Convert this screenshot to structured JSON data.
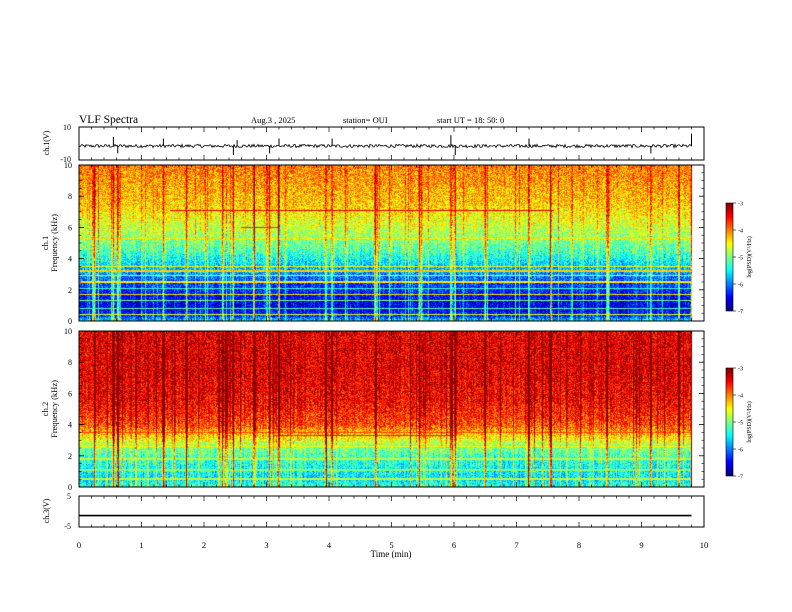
{
  "header": {
    "title": "VLF Spectra",
    "date": "Aug.3 , 2025",
    "station": "station= OUI",
    "start": "start UT = 18: 50: 0"
  },
  "chart_data": [
    {
      "type": "line",
      "panel": "ch1-waveform",
      "ylabel": "ch.1(V)",
      "ylim": [
        -10,
        10
      ],
      "yticks": [
        10,
        -10
      ],
      "baseline": -1.5,
      "noise_amplitude": 2,
      "spikes": [
        {
          "t": 0.55,
          "v": 4
        },
        {
          "t": 0.62,
          "v": -6
        },
        {
          "t": 1.35,
          "v": 3
        },
        {
          "t": 2.47,
          "v": -7
        },
        {
          "t": 2.53,
          "v": 2
        },
        {
          "t": 3.05,
          "v": -6
        },
        {
          "t": 3.2,
          "v": 3
        },
        {
          "t": 4.05,
          "v": 3
        },
        {
          "t": 5.95,
          "v": 5
        },
        {
          "t": 6.02,
          "v": -7
        },
        {
          "t": 7.2,
          "v": 3
        },
        {
          "t": 9.15,
          "v": -6
        },
        {
          "t": 9.8,
          "v": 6
        }
      ]
    },
    {
      "type": "heatmap",
      "panel": "ch1-spectrogram",
      "ylabel_line1": "ch.1",
      "ylabel_line2": "Frequency (kHz)",
      "ylim": [
        0,
        10
      ],
      "yticks": [
        0,
        2,
        4,
        6,
        8,
        10
      ],
      "colorbar": {
        "label": "log(PSD)(V²/Hz)",
        "range": [
          -7,
          -3
        ],
        "ticks": [
          -3,
          -4,
          -5,
          -6,
          -7
        ]
      },
      "profile": [
        {
          "f": 0,
          "v": -5.6
        },
        {
          "f": 0.3,
          "v": -6.3
        },
        {
          "f": 0.8,
          "v": -6.6
        },
        {
          "f": 1.5,
          "v": -6.5
        },
        {
          "f": 2.5,
          "v": -6.2
        },
        {
          "f": 3.5,
          "v": -5.7
        },
        {
          "f": 4.5,
          "v": -5.2
        },
        {
          "f": 6,
          "v": -4.7
        },
        {
          "f": 7.5,
          "v": -4.3
        },
        {
          "f": 9,
          "v": -4.1
        },
        {
          "f": 10,
          "v": -4.0
        }
      ],
      "lines": [
        {
          "f": 7.1,
          "t0": 1.45,
          "t1": 7.6,
          "v": -3.4
        },
        {
          "f": 6.0,
          "t0": 2.6,
          "t1": 3.2,
          "v": -3.6
        },
        {
          "f": 5.3,
          "t0": 0.0,
          "t1": 9.8,
          "v": -4.4
        },
        {
          "f": 3.5,
          "t0": 0.0,
          "t1": 9.8,
          "v": -4.5
        },
        {
          "f": 3.2,
          "t0": 0.0,
          "t1": 9.8,
          "v": -4.3
        },
        {
          "f": 2.9,
          "t0": 0.0,
          "t1": 9.8,
          "v": -4.7
        },
        {
          "f": 2.5,
          "t0": 0.0,
          "t1": 9.8,
          "v": -4.4
        },
        {
          "f": 2.1,
          "t0": 0.0,
          "t1": 9.8,
          "v": -5.3
        },
        {
          "f": 1.7,
          "t0": 0.0,
          "t1": 9.8,
          "v": -4.4
        },
        {
          "f": 1.3,
          "t0": 0.0,
          "t1": 9.8,
          "v": -5.0
        },
        {
          "f": 0.8,
          "t0": 0.0,
          "t1": 9.8,
          "v": -5.2
        },
        {
          "f": 0.4,
          "t0": 0.0,
          "t1": 9.8,
          "v": -4.6
        }
      ],
      "sferics": [
        0.25,
        0.55,
        0.62,
        1.35,
        1.72,
        2.3,
        2.47,
        2.8,
        3.05,
        3.2,
        3.95,
        4.05,
        4.75,
        5.45,
        5.95,
        6.02,
        6.5,
        7.2,
        7.55,
        8.45,
        9.15,
        9.6,
        9.8
      ]
    },
    {
      "type": "heatmap",
      "panel": "ch2-spectrogram",
      "ylabel_line1": "ch.2",
      "ylabel_line2": "Frequency (kHz)",
      "ylim": [
        0,
        10
      ],
      "yticks": [
        0,
        2,
        4,
        6,
        8,
        10
      ],
      "colorbar": {
        "label": "log(PSD)(V²/Hz)",
        "range": [
          -7,
          -3
        ],
        "ticks": [
          -3,
          -4,
          -5,
          -6,
          -7
        ]
      },
      "profile": [
        {
          "f": 0,
          "v": -5.3
        },
        {
          "f": 0.5,
          "v": -5.6
        },
        {
          "f": 1.5,
          "v": -5.4
        },
        {
          "f": 2.5,
          "v": -5.0
        },
        {
          "f": 3.2,
          "v": -4.4
        },
        {
          "f": 4.0,
          "v": -3.8
        },
        {
          "f": 5.5,
          "v": -3.5
        },
        {
          "f": 7.5,
          "v": -3.4
        },
        {
          "f": 10,
          "v": -3.4
        }
      ],
      "lines": [
        {
          "f": 3.5,
          "t0": 0.0,
          "t1": 9.8,
          "v": -3.8
        },
        {
          "f": 3.3,
          "t0": 3.1,
          "t1": 6.0,
          "v": -3.6
        },
        {
          "f": 2.6,
          "t0": 0.0,
          "t1": 9.8,
          "v": -4.5
        },
        {
          "f": 1.8,
          "t0": 0.0,
          "t1": 9.8,
          "v": -4.8
        },
        {
          "f": 1.1,
          "t0": 0.0,
          "t1": 9.8,
          "v": -5.0
        },
        {
          "f": 0.5,
          "t0": 0.0,
          "t1": 9.8,
          "v": -4.8
        }
      ],
      "sferics": [
        0.25,
        0.55,
        0.62,
        1.35,
        1.72,
        2.3,
        2.47,
        2.8,
        3.05,
        3.2,
        3.95,
        4.05,
        4.75,
        5.45,
        5.95,
        6.02,
        6.5,
        7.2,
        7.55,
        8.45,
        9.15,
        9.6,
        9.8
      ]
    },
    {
      "type": "line",
      "panel": "ch3-waveform",
      "ylabel": "ch.3(V)",
      "ylim": [
        -5,
        5
      ],
      "yticks": [
        5,
        -5
      ],
      "baseline": -1.3
    }
  ],
  "xaxis": {
    "label": "Time (min)",
    "range": [
      0,
      10
    ],
    "data_end": 9.8,
    "ticks": [
      0,
      1,
      2,
      3,
      4,
      5,
      6,
      7,
      8,
      9,
      10
    ]
  }
}
